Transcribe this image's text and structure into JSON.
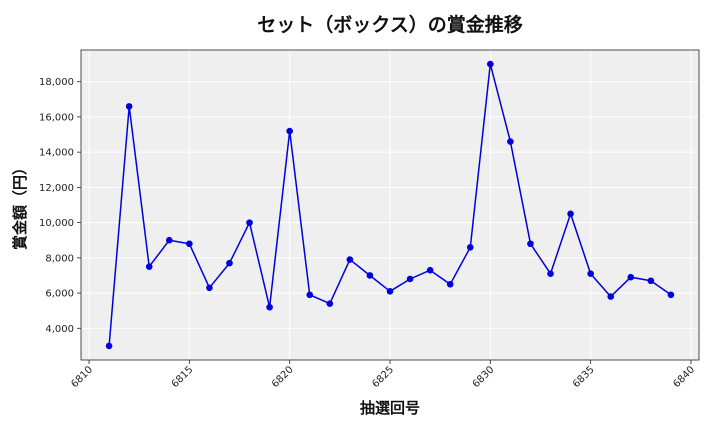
{
  "chart_data": {
    "type": "line",
    "title": "セット（ボックス）の賞金推移",
    "xlabel": "抽選回号",
    "ylabel": "賞金額（円）",
    "x": [
      6811,
      6812,
      6813,
      6814,
      6815,
      6816,
      6817,
      6818,
      6819,
      6820,
      6821,
      6822,
      6823,
      6824,
      6825,
      6826,
      6827,
      6828,
      6829,
      6830,
      6831,
      6832,
      6833,
      6834,
      6835,
      6836,
      6837,
      6838,
      6839
    ],
    "y": [
      3000,
      16600,
      7500,
      9000,
      8800,
      6300,
      7700,
      10000,
      5200,
      15200,
      5900,
      5400,
      7900,
      7000,
      6100,
      6800,
      7300,
      6500,
      8600,
      19000,
      14600,
      8800,
      7100,
      10500,
      7100,
      5800,
      6900,
      6700,
      5900
    ],
    "xlim": [
      6809.6,
      6840.4
    ],
    "ylim": [
      2200,
      19800
    ],
    "xticks": [
      6810,
      6815,
      6820,
      6825,
      6830,
      6835,
      6840
    ],
    "yticks": [
      4000,
      6000,
      8000,
      10000,
      12000,
      14000,
      16000,
      18000
    ],
    "xtick_labels": [
      "6810",
      "6815",
      "6820",
      "6825",
      "6830",
      "6835",
      "6840"
    ],
    "ytick_labels": [
      "4,000",
      "6,000",
      "8,000",
      "10,000",
      "12,000",
      "14,000",
      "16,000",
      "18,000"
    ],
    "grid": true,
    "colors": {
      "line": "#0000dd",
      "marker": "#0000dd",
      "plot_bg": "#efefef",
      "grid": "#ffffff"
    }
  }
}
